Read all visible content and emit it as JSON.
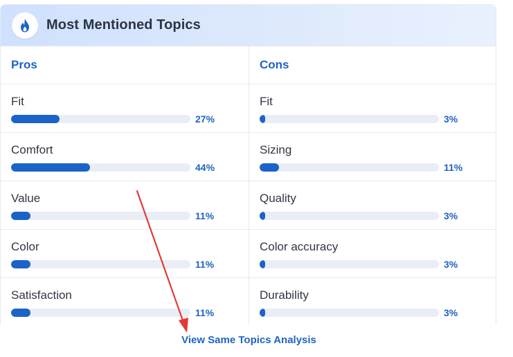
{
  "header": {
    "title": "Most Mentioned Topics",
    "icon": "flame-icon",
    "accent": "#1e63c4"
  },
  "pros": {
    "label": "Pros",
    "items": [
      {
        "label": "Fit",
        "percent": 27,
        "percent_text": "27%"
      },
      {
        "label": "Comfort",
        "percent": 44,
        "percent_text": "44%"
      },
      {
        "label": "Value",
        "percent": 11,
        "percent_text": "11%"
      },
      {
        "label": "Color",
        "percent": 11,
        "percent_text": "11%"
      },
      {
        "label": "Satisfaction",
        "percent": 11,
        "percent_text": "11%"
      }
    ]
  },
  "cons": {
    "label": "Cons",
    "items": [
      {
        "label": "Fit",
        "percent": 3,
        "percent_text": "3%"
      },
      {
        "label": "Sizing",
        "percent": 11,
        "percent_text": "11%"
      },
      {
        "label": "Quality",
        "percent": 3,
        "percent_text": "3%"
      },
      {
        "label": "Color accuracy",
        "percent": 3,
        "percent_text": "3%"
      },
      {
        "label": "Durability",
        "percent": 3,
        "percent_text": "3%"
      }
    ]
  },
  "footer": {
    "link_label": "View Same Topics Analysis"
  },
  "colors": {
    "bar_fill": "#1b63c8",
    "bar_track": "#e9edf5",
    "annotation_arrow": "#e53935"
  }
}
